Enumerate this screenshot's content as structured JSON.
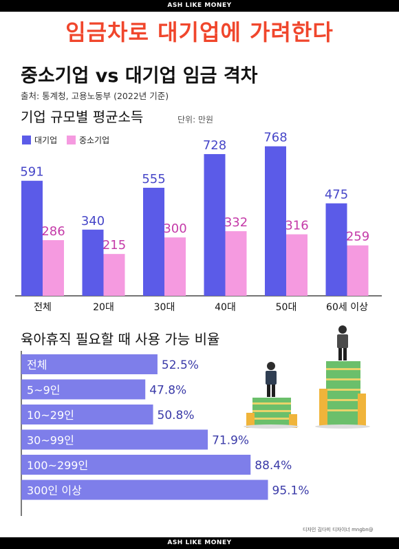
{
  "brand": {
    "top": "ASH LIKE MONEY",
    "bottom": "ASH LIKE MONEY"
  },
  "headline": "임금차로 대기업에 가려한다",
  "title": "중소기업 vs 대기업 임금 격차",
  "source": "출처: 통계청, 고용노동부 (2022년 기준)",
  "credit": "디자인 김다미 디자이너 mngbn@",
  "colors": {
    "headline": "#f0462c",
    "large": "#5b5be8",
    "small": "#f59ae0",
    "hbar": "#7e7eea"
  },
  "chart_data": [
    {
      "type": "bar",
      "title": "기업 규모별 평균소득",
      "unit": "단위: 만원",
      "categories": [
        "전체",
        "20대",
        "30대",
        "40대",
        "50대",
        "60세 이상"
      ],
      "series": [
        {
          "name": "대기업",
          "values": [
            591,
            340,
            555,
            728,
            768,
            475
          ]
        },
        {
          "name": "중소기업",
          "values": [
            286,
            215,
            300,
            332,
            316,
            259
          ]
        }
      ],
      "legend": "top-left",
      "grid": false
    },
    {
      "type": "bar",
      "orientation": "horizontal",
      "title": "육아휴직 필요할 때 사용 가능 비율",
      "categories": [
        "전체",
        "5~9인",
        "10~29인",
        "30~99인",
        "100~299인",
        "300인 이상"
      ],
      "values": [
        52.5,
        47.8,
        50.8,
        71.9,
        88.4,
        95.1
      ],
      "value_labels": [
        "52.5%",
        "47.8%",
        "50.8%",
        "71.9%",
        "88.4%",
        "95.1%"
      ],
      "xlim": [
        0,
        100
      ],
      "grid": false
    }
  ]
}
